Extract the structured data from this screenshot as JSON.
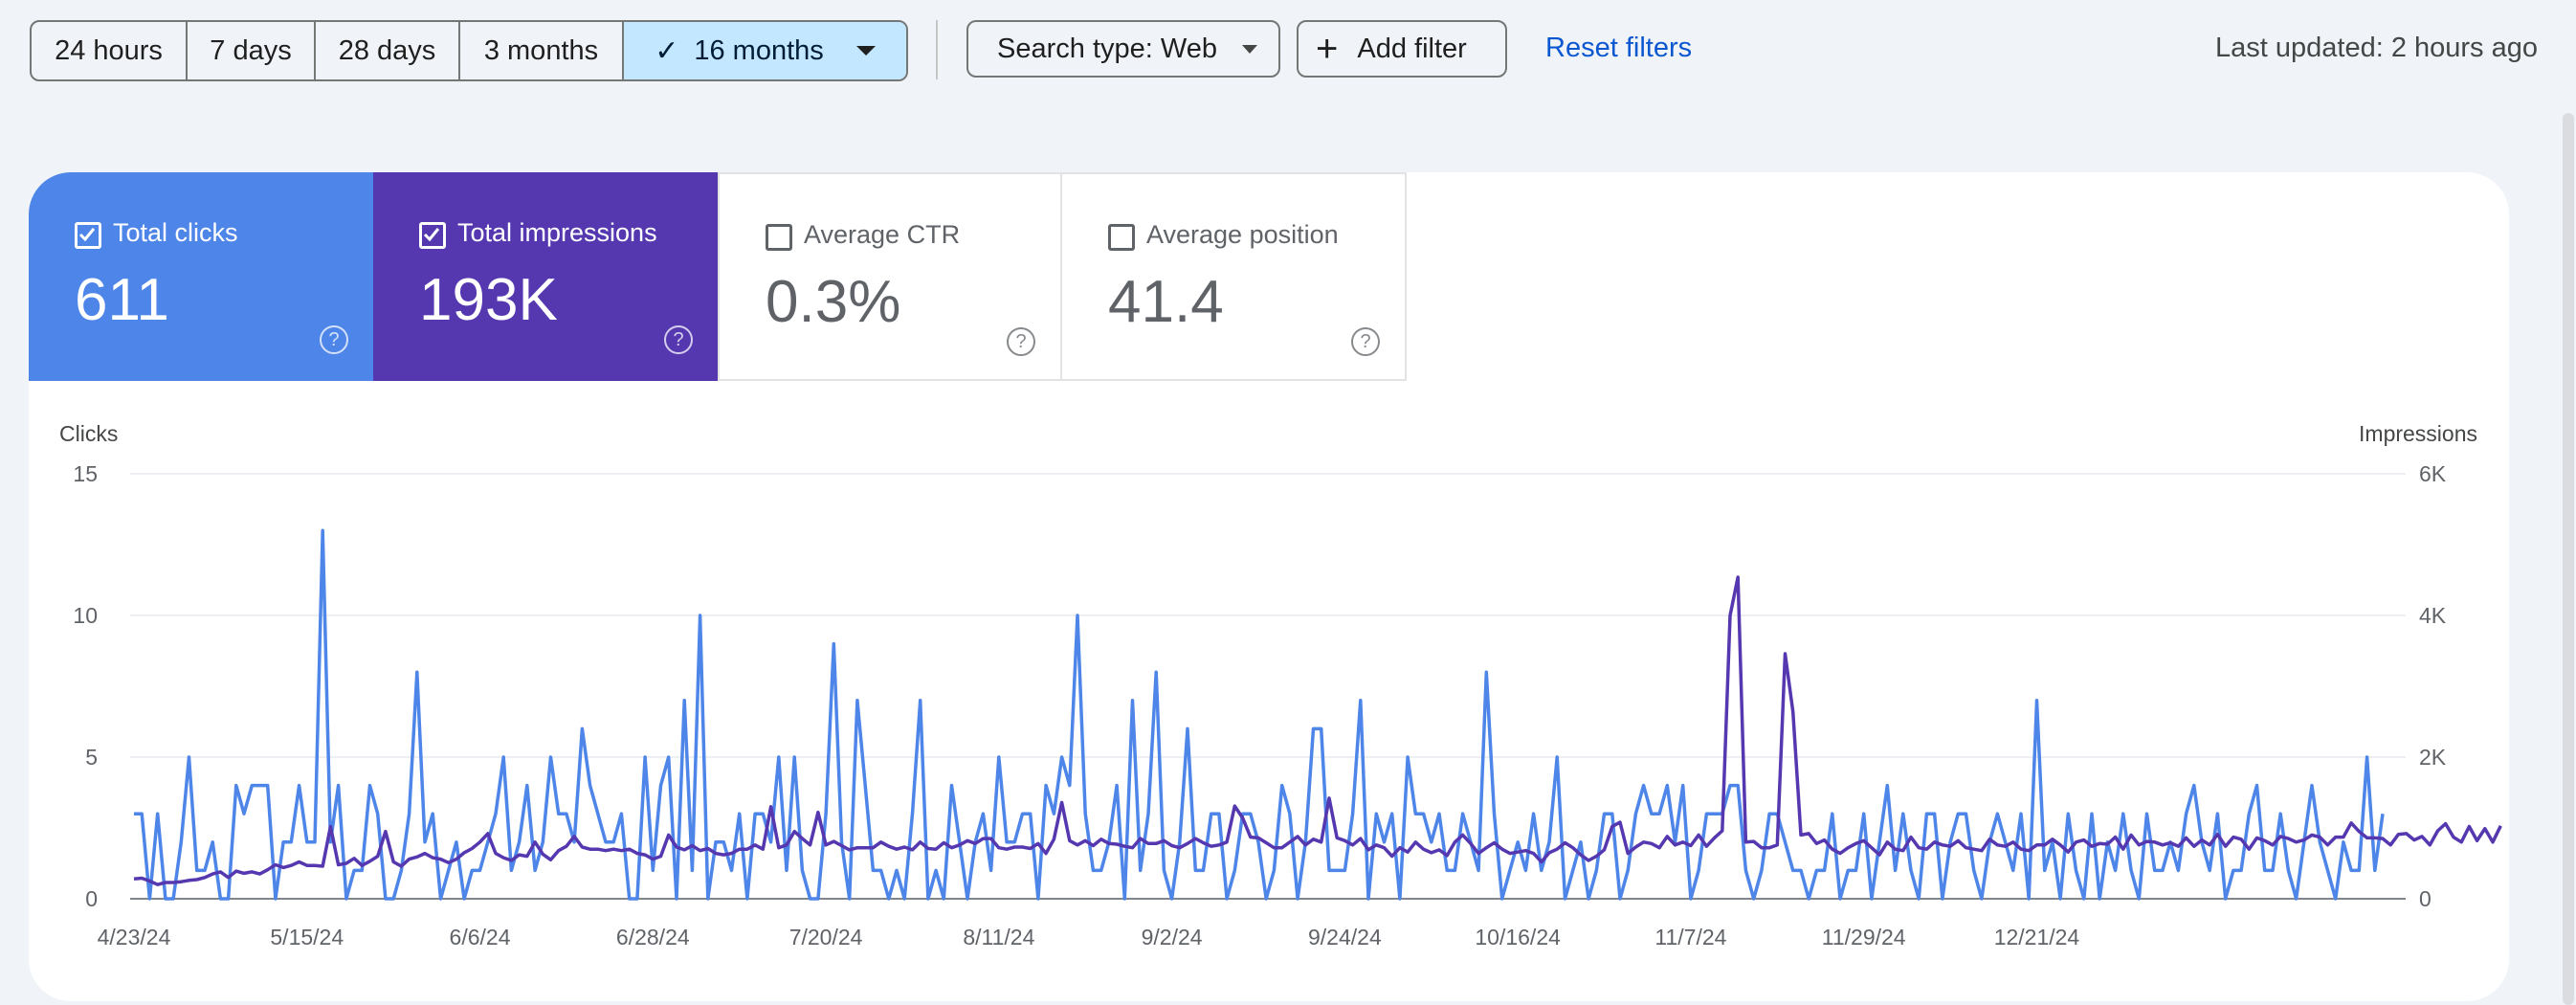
{
  "toolbar": {
    "ranges": [
      {
        "label": "24 hours",
        "active": false
      },
      {
        "label": "7 days",
        "active": false
      },
      {
        "label": "28 days",
        "active": false
      },
      {
        "label": "3 months",
        "active": false
      },
      {
        "label": "16 months",
        "active": true
      }
    ],
    "search_type_label": "Search type: Web",
    "add_filter_label": "Add filter",
    "reset_label": "Reset filters",
    "last_updated": "Last updated: 2 hours ago"
  },
  "metrics": {
    "clicks": {
      "label": "Total clicks",
      "value": "611",
      "checked": true,
      "color": "#4e85e8"
    },
    "impressions": {
      "label": "Total impressions",
      "value": "193K",
      "checked": true,
      "color": "#5538b0"
    },
    "ctr": {
      "label": "Average CTR",
      "value": "0.3%",
      "checked": false
    },
    "position": {
      "label": "Average position",
      "value": "41.4",
      "checked": false
    }
  },
  "chart_data": {
    "type": "line",
    "left_axis": {
      "title": "Clicks",
      "ticks": [
        "15",
        "10",
        "5",
        "0"
      ],
      "ylim": [
        0,
        15
      ]
    },
    "right_axis": {
      "title": "Impressions",
      "ticks": [
        "6K",
        "4K",
        "2K",
        "0"
      ],
      "ylim": [
        0,
        6000
      ]
    },
    "x_ticks": [
      "4/23/24",
      "5/15/24",
      "6/6/24",
      "6/28/24",
      "7/20/24",
      "8/11/24",
      "9/2/24",
      "9/24/24",
      "10/16/24",
      "11/7/24",
      "11/29/24",
      "12/21/24"
    ],
    "grid": true,
    "series": [
      {
        "name": "Total clicks",
        "axis": "left",
        "color": "#4e85e8",
        "values": [
          3,
          3,
          0,
          3,
          0,
          0,
          2,
          5,
          1,
          1,
          2,
          0,
          0,
          4,
          3,
          4,
          4,
          4,
          0,
          2,
          2,
          4,
          2,
          2,
          13,
          2,
          4,
          0,
          1,
          1,
          4,
          3,
          0,
          0,
          1,
          3,
          8,
          2,
          3,
          0,
          1,
          2,
          0,
          1,
          1,
          2,
          3,
          5,
          1,
          2,
          4,
          1,
          2,
          5,
          3,
          3,
          2,
          6,
          4,
          3,
          2,
          2,
          3,
          0,
          0,
          5,
          1,
          4,
          5,
          0,
          7,
          1,
          10,
          0,
          2,
          2,
          1,
          3,
          0,
          3,
          3,
          2,
          5,
          1,
          5,
          1,
          0,
          0,
          3,
          9,
          2,
          0,
          7,
          4,
          1,
          1,
          0,
          1,
          0,
          3,
          7,
          0,
          1,
          0,
          4,
          2,
          0,
          2,
          3,
          1,
          5,
          2,
          2,
          3,
          3,
          0,
          4,
          3,
          5,
          4,
          10,
          3,
          1,
          1,
          2,
          4,
          0,
          7,
          1,
          3,
          8,
          1,
          0,
          2,
          6,
          1,
          1,
          3,
          3,
          0,
          1,
          3,
          3,
          2,
          0,
          1,
          4,
          3,
          0,
          2,
          6,
          6,
          1,
          1,
          1,
          3,
          7,
          0,
          3,
          2,
          3,
          0,
          5,
          3,
          3,
          2,
          3,
          1,
          1,
          3,
          2,
          1,
          8,
          3,
          0,
          1,
          2,
          1,
          3,
          1,
          2,
          5,
          0,
          1,
          2,
          0,
          1,
          3,
          3,
          0,
          1,
          3,
          4,
          3,
          3,
          4,
          2,
          4,
          0,
          1,
          3,
          3,
          3,
          4,
          4,
          1,
          0,
          1,
          3,
          3,
          2,
          1,
          1,
          0,
          1,
          1,
          3,
          0,
          1,
          1,
          3,
          0,
          2,
          4,
          1,
          3,
          1,
          0,
          3,
          3,
          0,
          2,
          3,
          3,
          1,
          0,
          2,
          3,
          2,
          1,
          3,
          0,
          7,
          1,
          2,
          0,
          3,
          1,
          0,
          3,
          0,
          2,
          1,
          3,
          1,
          0,
          3,
          1,
          1,
          2,
          1,
          3,
          4,
          2,
          1,
          3,
          0,
          1,
          1,
          3,
          4,
          1,
          1,
          3,
          1,
          0,
          2,
          4,
          2,
          1,
          0,
          2,
          1,
          1,
          5,
          1,
          3
        ],
        "note": ""
      },
      {
        "name": "Total impressions",
        "axis": "right",
        "color": "#5538b0",
        "values": [
          280,
          290,
          250,
          200,
          230,
          230,
          240,
          260,
          270,
          300,
          350,
          380,
          300,
          390,
          360,
          380,
          350,
          410,
          480,
          440,
          470,
          520,
          470,
          470,
          460,
          1020,
          480,
          500,
          570,
          470,
          530,
          600,
          950,
          520,
          460,
          560,
          590,
          640,
          580,
          560,
          510,
          560,
          650,
          710,
          800,
          920,
          640,
          580,
          540,
          620,
          600,
          800,
          630,
          550,
          680,
          740,
          880,
          730,
          700,
          700,
          680,
          700,
          680,
          700,
          640,
          620,
          560,
          600,
          900,
          730,
          690,
          750,
          680,
          710,
          640,
          620,
          640,
          700,
          700,
          760,
          700,
          1300,
          720,
          760,
          950,
          850,
          760,
          1220,
          760,
          810,
          750,
          690,
          720,
          720,
          720,
          800,
          740,
          700,
          730,
          690,
          800,
          710,
          700,
          790,
          720,
          760,
          820,
          780,
          850,
          850,
          720,
          700,
          730,
          730,
          710,
          780,
          640,
          840,
          1360,
          820,
          760,
          820,
          750,
          840,
          780,
          770,
          740,
          720,
          850,
          780,
          780,
          820,
          750,
          720,
          780,
          850,
          790,
          740,
          760,
          800,
          1310,
          1140,
          870,
          860,
          790,
          720,
          720,
          800,
          880,
          760,
          840,
          800,
          1420,
          860,
          820,
          760,
          850,
          690,
          760,
          720,
          600,
          720,
          660,
          800,
          700,
          650,
          690,
          610,
          800,
          900,
          780,
          640,
          720,
          790,
          700,
          640,
          660,
          680,
          640,
          520,
          650,
          700,
          790,
          720,
          620,
          540,
          600,
          690,
          1020,
          1080,
          640,
          730,
          800,
          780,
          720,
          880,
          760,
          800,
          750,
          900,
          740,
          860,
          960,
          4000,
          4540,
          800,
          810,
          720,
          720,
          760,
          3460,
          2640,
          900,
          920,
          780,
          830,
          700,
          640,
          720,
          780,
          820,
          720,
          620,
          800,
          700,
          680,
          870,
          720,
          700,
          800,
          760,
          740,
          820,
          720,
          700,
          680,
          840,
          760,
          740,
          800,
          700,
          680,
          760,
          760,
          840,
          760,
          660,
          800,
          830,
          740,
          780,
          770,
          870,
          700,
          900,
          760,
          810,
          800,
          760,
          790,
          740,
          860,
          740,
          830,
          760,
          910,
          740,
          870,
          840,
          700,
          860,
          820,
          760,
          880,
          850,
          800,
          830,
          900,
          870,
          760,
          870,
          870,
          1070,
          950,
          860,
          860,
          850,
          760,
          910,
          920,
          830,
          880,
          760,
          960,
          1060,
          870,
          800,
          1020,
          820,
          990,
          800,
          1030
        ]
      }
    ]
  }
}
